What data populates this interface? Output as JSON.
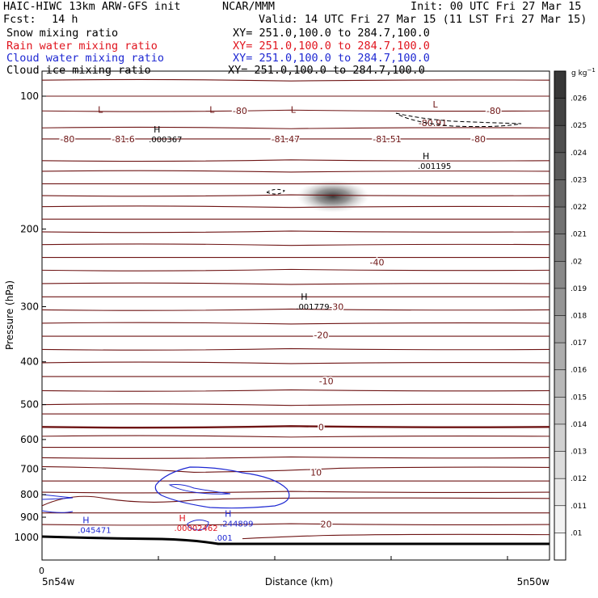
{
  "header": {
    "title_left": "HAIC-HIWC 13km ARW-GFS init",
    "org": "NCAR/MMM",
    "init": "Init: 00 UTC Fri 27 Mar 15",
    "fcst_label": "Fcst:",
    "fcst_value": "14 h",
    "valid": "Valid: 14 UTC Fri 27 Mar 15 (11 LST Fri 27 Mar 15)",
    "fields": [
      {
        "name": "Snow mixing ratio",
        "xy": "XY= 251.0,100.0 to 284.7,100.0",
        "color": "#000000"
      },
      {
        "name": "Rain water mixing ratio",
        "xy": "XY= 251.0,100.0 to 284.7,100.0",
        "color": "#e0141e"
      },
      {
        "name": "Cloud water mixing ratio",
        "xy": "XY= 251.0,100.0 to 284.7,100.0",
        "color": "#1e28d2"
      },
      {
        "name": "Cloud ice mixing ratio",
        "xy": "XY= 251.0,100.0 to 284.7,100.0",
        "color": "#000000"
      }
    ]
  },
  "chart_data": {
    "type": "cross-section",
    "ylabel": "Pressure (hPa)",
    "xlabel": "Distance (km)",
    "x_start_label": "5n54w",
    "x_end_label": "5n50w",
    "x_zero_label": "0",
    "y_axis": "log-pressure, inverted",
    "y_ticks": [
      100,
      200,
      300,
      400,
      500,
      600,
      700,
      800,
      900,
      1000
    ],
    "ylim": [
      1050,
      70
    ],
    "grid": false,
    "colorbar": {
      "unit": "g kg-1",
      "ticks": [
        ".01",
        ".011",
        ".012",
        ".013",
        ".014",
        ".015",
        ".016",
        ".017",
        ".018",
        ".019",
        ".02",
        ".021",
        ".022",
        ".023",
        ".024",
        ".025",
        ".026"
      ]
    },
    "temperature_contour_labels": [
      {
        "text": "-80",
        "p": 108,
        "x": 0.39
      },
      {
        "text": "-80",
        "p": 108,
        "x": 0.89
      },
      {
        "text": "-80",
        "p": 125,
        "x": 0.05
      },
      {
        "text": "-81.6",
        "p": 125,
        "x": 0.16
      },
      {
        "text": "-81.47",
        "p": 125,
        "x": 0.48
      },
      {
        "text": "-81.51",
        "p": 125,
        "x": 0.68
      },
      {
        "text": "-80",
        "p": 125,
        "x": 0.86
      },
      {
        "text": "-80.91",
        "p": 115,
        "x": 0.77
      },
      {
        "text": "-40",
        "p": 238,
        "x": 0.66
      },
      {
        "text": "-30",
        "p": 300,
        "x": 0.58
      },
      {
        "text": "-20",
        "p": 348,
        "x": 0.55
      },
      {
        "text": "-10",
        "p": 442,
        "x": 0.56
      },
      {
        "text": "0",
        "p": 562,
        "x": 0.55
      },
      {
        "text": "10",
        "p": 712,
        "x": 0.54
      },
      {
        "text": "20",
        "p": 932,
        "x": 0.56
      }
    ],
    "extrema_labels": [
      {
        "marker": "L",
        "p": 110,
        "x": 0.11,
        "value": "",
        "color": "#6e1414"
      },
      {
        "marker": "L",
        "p": 110,
        "x": 0.33,
        "value": "",
        "color": "#6e1414"
      },
      {
        "marker": "L",
        "p": 110,
        "x": 0.49,
        "value": "",
        "color": "#6e1414"
      },
      {
        "marker": "L",
        "p": 107,
        "x": 0.77,
        "value": "",
        "color": "#6e1414"
      },
      {
        "marker": "H",
        "p": 122,
        "x": 0.22,
        "value": ".000367",
        "color": "#000000"
      },
      {
        "marker": "H",
        "p": 140,
        "x": 0.75,
        "value": ".001195",
        "color": "#000000"
      },
      {
        "marker": "H",
        "p": 292,
        "x": 0.51,
        "value": ".001779",
        "color": "#000000"
      },
      {
        "marker": "H",
        "p": 905,
        "x": 0.36,
        "value": ".244899",
        "color": "#1e28d2"
      },
      {
        "marker": "H",
        "p": 927,
        "x": 0.27,
        "value": ".00002462",
        "color": "#e0141e"
      },
      {
        "marker": "H",
        "p": 937,
        "x": 0.08,
        "value": ".045471",
        "color": "#1e28d2"
      },
      {
        "marker": "",
        "p": 975,
        "x": 0.34,
        "value": ".001",
        "color": "#1e28d2"
      }
    ]
  }
}
